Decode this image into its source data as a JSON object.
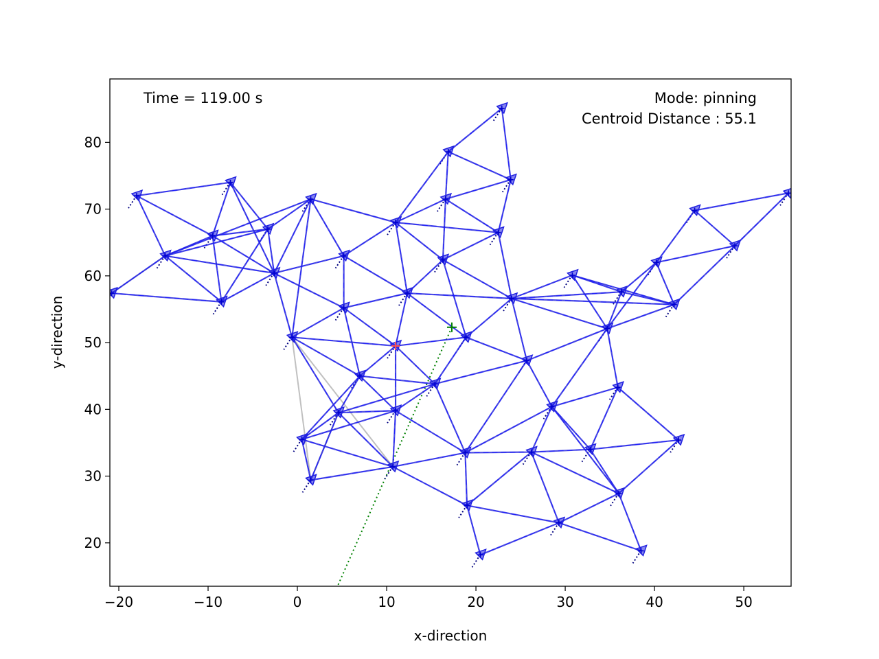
{
  "chart_data": {
    "type": "scatter",
    "title": "",
    "xlabel": "x-direction",
    "ylabel": "y-direction",
    "xlim": [
      -21,
      55.3
    ],
    "ylim": [
      13.5,
      89.5
    ],
    "xticks": [
      -20,
      -10,
      0,
      10,
      20,
      30,
      40,
      50
    ],
    "xtick_labels": [
      "−20",
      "−10",
      "0",
      "10",
      "20",
      "30",
      "40",
      "50"
    ],
    "yticks": [
      20,
      30,
      40,
      50,
      60,
      70,
      80
    ],
    "ytick_labels": [
      "20",
      "30",
      "40",
      "50",
      "60",
      "70",
      "80"
    ],
    "grid": false,
    "annotations": {
      "time": "Time = 119.00 s",
      "mode": "Mode: pinning",
      "centroid": "Centroid Distance : 55.1"
    },
    "colors": {
      "agent": "#2020e0",
      "edge": "#2525dd",
      "faint_edge": "#c0c0c0",
      "leader": "#ff5050",
      "target": "#008000",
      "trail": "#000080"
    },
    "agents": [
      {
        "x": 22.9,
        "y": 85.1
      },
      {
        "x": 16.9,
        "y": 78.6
      },
      {
        "x": 23.9,
        "y": 74.4
      },
      {
        "x": 16.6,
        "y": 71.5
      },
      {
        "x": -7.5,
        "y": 74.0
      },
      {
        "x": -18.0,
        "y": 72.0
      },
      {
        "x": 1.5,
        "y": 71.5
      },
      {
        "x": 11.0,
        "y": 68.0
      },
      {
        "x": 22.5,
        "y": 66.5
      },
      {
        "x": -9.5,
        "y": 66.0
      },
      {
        "x": -3.3,
        "y": 67.0
      },
      {
        "x": -14.8,
        "y": 63.0
      },
      {
        "x": 5.2,
        "y": 63.0
      },
      {
        "x": 16.3,
        "y": 62.4
      },
      {
        "x": -2.6,
        "y": 60.4
      },
      {
        "x": -20.8,
        "y": 57.4
      },
      {
        "x": -8.5,
        "y": 56.1
      },
      {
        "x": 12.3,
        "y": 57.4
      },
      {
        "x": 5.2,
        "y": 55.2
      },
      {
        "x": 24.0,
        "y": 56.6
      },
      {
        "x": -0.6,
        "y": 50.8
      },
      {
        "x": 11.0,
        "y": 49.5
      },
      {
        "x": 18.9,
        "y": 50.8
      },
      {
        "x": 7.0,
        "y": 45.0
      },
      {
        "x": 15.4,
        "y": 43.8
      },
      {
        "x": 25.7,
        "y": 47.3
      },
      {
        "x": 4.6,
        "y": 39.5
      },
      {
        "x": 11.0,
        "y": 39.8
      },
      {
        "x": 28.5,
        "y": 40.4
      },
      {
        "x": 0.5,
        "y": 35.5
      },
      {
        "x": 18.8,
        "y": 33.5
      },
      {
        "x": 10.7,
        "y": 31.4
      },
      {
        "x": 1.5,
        "y": 29.4
      },
      {
        "x": 19.0,
        "y": 25.6
      },
      {
        "x": 20.5,
        "y": 18.2
      },
      {
        "x": 26.2,
        "y": 33.6
      },
      {
        "x": 32.8,
        "y": 34.0
      },
      {
        "x": 29.3,
        "y": 23.0
      },
      {
        "x": 36.0,
        "y": 27.4
      },
      {
        "x": 38.5,
        "y": 18.8
      },
      {
        "x": 42.7,
        "y": 35.4
      },
      {
        "x": 34.7,
        "y": 52.1
      },
      {
        "x": 35.9,
        "y": 43.3
      },
      {
        "x": 30.8,
        "y": 60.1
      },
      {
        "x": 36.3,
        "y": 57.6
      },
      {
        "x": 40.2,
        "y": 62.0
      },
      {
        "x": 42.2,
        "y": 55.7
      },
      {
        "x": 44.5,
        "y": 69.8
      },
      {
        "x": 49.0,
        "y": 64.5
      },
      {
        "x": 55.0,
        "y": 72.4
      }
    ],
    "edges": [
      [
        0,
        1
      ],
      [
        0,
        2
      ],
      [
        1,
        2
      ],
      [
        1,
        3
      ],
      [
        2,
        3
      ],
      [
        2,
        8
      ],
      [
        3,
        7
      ],
      [
        3,
        8
      ],
      [
        1,
        7
      ],
      [
        3,
        13
      ],
      [
        7,
        8
      ],
      [
        8,
        13
      ],
      [
        7,
        13
      ],
      [
        7,
        12
      ],
      [
        7,
        17
      ],
      [
        13,
        17
      ],
      [
        8,
        19
      ],
      [
        13,
        19
      ],
      [
        13,
        22
      ],
      [
        4,
        5
      ],
      [
        4,
        9
      ],
      [
        4,
        10
      ],
      [
        5,
        9
      ],
      [
        5,
        11
      ],
      [
        9,
        10
      ],
      [
        9,
        11
      ],
      [
        9,
        16
      ],
      [
        9,
        14
      ],
      [
        10,
        11
      ],
      [
        10,
        14
      ],
      [
        10,
        16
      ],
      [
        10,
        6
      ],
      [
        6,
        11
      ],
      [
        6,
        14
      ],
      [
        6,
        12
      ],
      [
        6,
        20
      ],
      [
        4,
        14
      ],
      [
        11,
        14
      ],
      [
        11,
        15
      ],
      [
        11,
        16
      ],
      [
        15,
        16
      ],
      [
        16,
        14
      ],
      [
        14,
        12
      ],
      [
        12,
        17
      ],
      [
        12,
        18
      ],
      [
        14,
        18
      ],
      [
        14,
        20
      ],
      [
        18,
        17
      ],
      [
        17,
        19
      ],
      [
        17,
        22
      ],
      [
        17,
        21
      ],
      [
        18,
        20
      ],
      [
        18,
        21
      ],
      [
        18,
        23
      ],
      [
        19,
        22
      ],
      [
        19,
        25
      ],
      [
        19,
        43
      ],
      [
        19,
        44
      ],
      [
        19,
        41
      ],
      [
        19,
        46
      ],
      [
        22,
        24
      ],
      [
        22,
        25
      ],
      [
        21,
        22
      ],
      [
        21,
        23
      ],
      [
        21,
        24
      ],
      [
        21,
        27
      ],
      [
        20,
        21
      ],
      [
        23,
        24
      ],
      [
        23,
        26
      ],
      [
        23,
        27
      ],
      [
        23,
        29
      ],
      [
        24,
        26
      ],
      [
        24,
        27
      ],
      [
        24,
        30
      ],
      [
        24,
        25
      ],
      [
        25,
        28
      ],
      [
        25,
        41
      ],
      [
        25,
        30
      ],
      [
        26,
        27
      ],
      [
        26,
        29
      ],
      [
        26,
        31
      ],
      [
        26,
        32
      ],
      [
        27,
        29
      ],
      [
        27,
        30
      ],
      [
        27,
        31
      ],
      [
        29,
        31
      ],
      [
        29,
        32
      ],
      [
        31,
        32
      ],
      [
        30,
        31
      ],
      [
        30,
        33
      ],
      [
        30,
        35
      ],
      [
        30,
        28
      ],
      [
        31,
        33
      ],
      [
        33,
        34
      ],
      [
        33,
        35
      ],
      [
        33,
        37
      ],
      [
        34,
        37
      ],
      [
        35,
        37
      ],
      [
        35,
        36
      ],
      [
        35,
        28
      ],
      [
        35,
        38
      ],
      [
        28,
        36
      ],
      [
        28,
        41
      ],
      [
        28,
        42
      ],
      [
        36,
        42
      ],
      [
        36,
        38
      ],
      [
        36,
        40
      ],
      [
        37,
        38
      ],
      [
        37,
        39
      ],
      [
        38,
        39
      ],
      [
        38,
        40
      ],
      [
        38,
        28
      ],
      [
        40,
        42
      ],
      [
        42,
        41
      ],
      [
        41,
        43
      ],
      [
        41,
        44
      ],
      [
        41,
        45
      ],
      [
        41,
        46
      ],
      [
        43,
        44
      ],
      [
        43,
        46
      ],
      [
        44,
        46
      ],
      [
        44,
        45
      ],
      [
        45,
        46
      ],
      [
        45,
        47
      ],
      [
        45,
        48
      ],
      [
        47,
        48
      ],
      [
        47,
        49
      ],
      [
        48,
        49
      ],
      [
        46,
        48
      ],
      [
        20,
        23
      ],
      [
        20,
        26
      ],
      [
        7,
        6
      ]
    ],
    "faint_edges": [
      [
        20,
        31
      ],
      [
        20,
        32
      ],
      [
        15,
        11
      ],
      [
        26,
        32
      ]
    ],
    "leader": {
      "x": 11.0,
      "y": 49.5
    },
    "target": {
      "x": 17.3,
      "y": 52.3
    },
    "target_path": [
      [
        17.3,
        52.3
      ],
      [
        4.5,
        13.5
      ]
    ]
  }
}
